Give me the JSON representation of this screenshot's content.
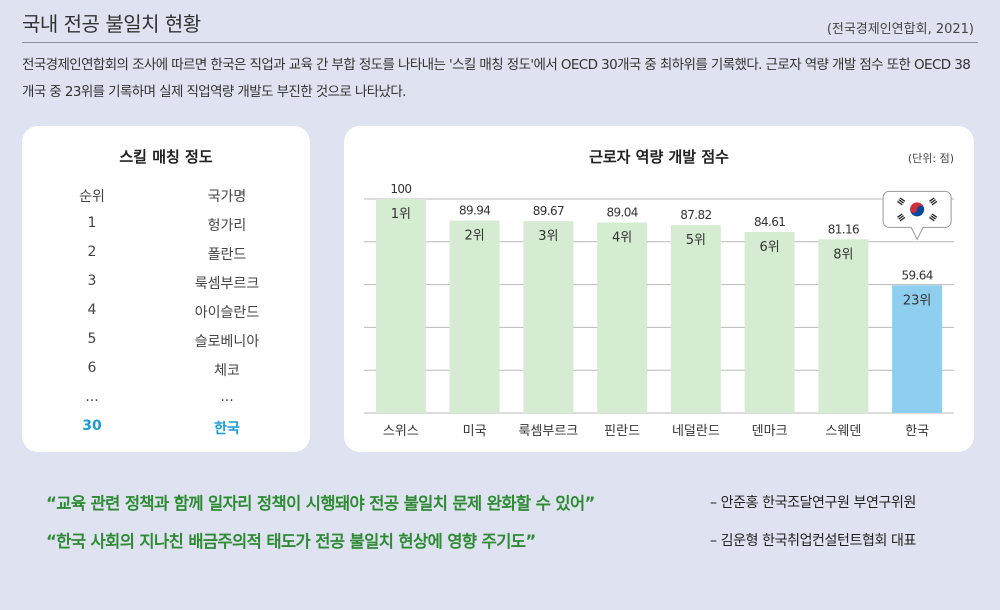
{
  "header": {
    "title": "국내 전공 불일치 현황",
    "source": "(전국경제인연합회, 2021)",
    "intro": "전국경제인연합회의 조사에 따르면 한국은 직업과 교육 간 부합 정도를 나타내는 '스킬 매칭 정도'에서 OECD 30개국 중 최하위를 기록했다. 근로자 역량 개발 점수 또한 OECD 38개국 중 23위를 기록하며 실제 직업역량 개발도 부진한 것으로 나타났다."
  },
  "skill_panel": {
    "title": "스킬 매칭 정도",
    "col_rank": "순위",
    "col_country": "국가명",
    "rows": [
      {
        "rank": "1",
        "country": "헝가리"
      },
      {
        "rank": "2",
        "country": "폴란드"
      },
      {
        "rank": "3",
        "country": "룩셈부르크"
      },
      {
        "rank": "4",
        "country": "아이슬란드"
      },
      {
        "rank": "5",
        "country": "슬로베니아"
      },
      {
        "rank": "6",
        "country": "체코"
      },
      {
        "rank": "...",
        "country": "..."
      },
      {
        "rank": "30",
        "country": "한국"
      }
    ]
  },
  "chart_panel": {
    "title": "근로자 역량 개발 점수",
    "unit": "(단위: 점)"
  },
  "chart_data": {
    "type": "bar",
    "title": "근로자 역량 개발 점수",
    "unit": "(단위: 점)",
    "categories": [
      "스위스",
      "미국",
      "룩셈부르크",
      "핀란드",
      "네덜란드",
      "덴마크",
      "스웨덴",
      "한국"
    ],
    "values": [
      100,
      89.94,
      89.67,
      89.04,
      87.82,
      84.61,
      81.16,
      59.64
    ],
    "value_labels": [
      "100",
      "89.94",
      "89.67",
      "89.04",
      "87.82",
      "84.61",
      "81.16",
      "59.64"
    ],
    "rank_labels": [
      "1위",
      "2위",
      "3위",
      "4위",
      "5위",
      "6위",
      "8위",
      "23위"
    ],
    "ylim": [
      0,
      100
    ],
    "grid": true,
    "colors": {
      "bar": "#d6ecd2",
      "highlight_bar": "#8ecfef",
      "grid": "#b9b9b9",
      "text": "#333333"
    },
    "highlight": "한국",
    "flag": "korea-flag-icon"
  },
  "quotes": [
    {
      "text": "“교육 관련 정책과 함께 일자리 정책이 시행돼야 전공 불일치 문제 완화할 수 있어”",
      "attribution": "– 안준홍 한국조달연구원 부연구위원"
    },
    {
      "text": "“한국 사회의 지나친 배금주의적 태도가 전공 불일치 현상에 영향 주기도”",
      "attribution": "– 김운형 한국취업컨설턴트협회 대표"
    }
  ],
  "colors": {
    "background": "#dfe3f1",
    "accent_blue": "#1b9ad6",
    "quote_green": "#2e8b34"
  }
}
